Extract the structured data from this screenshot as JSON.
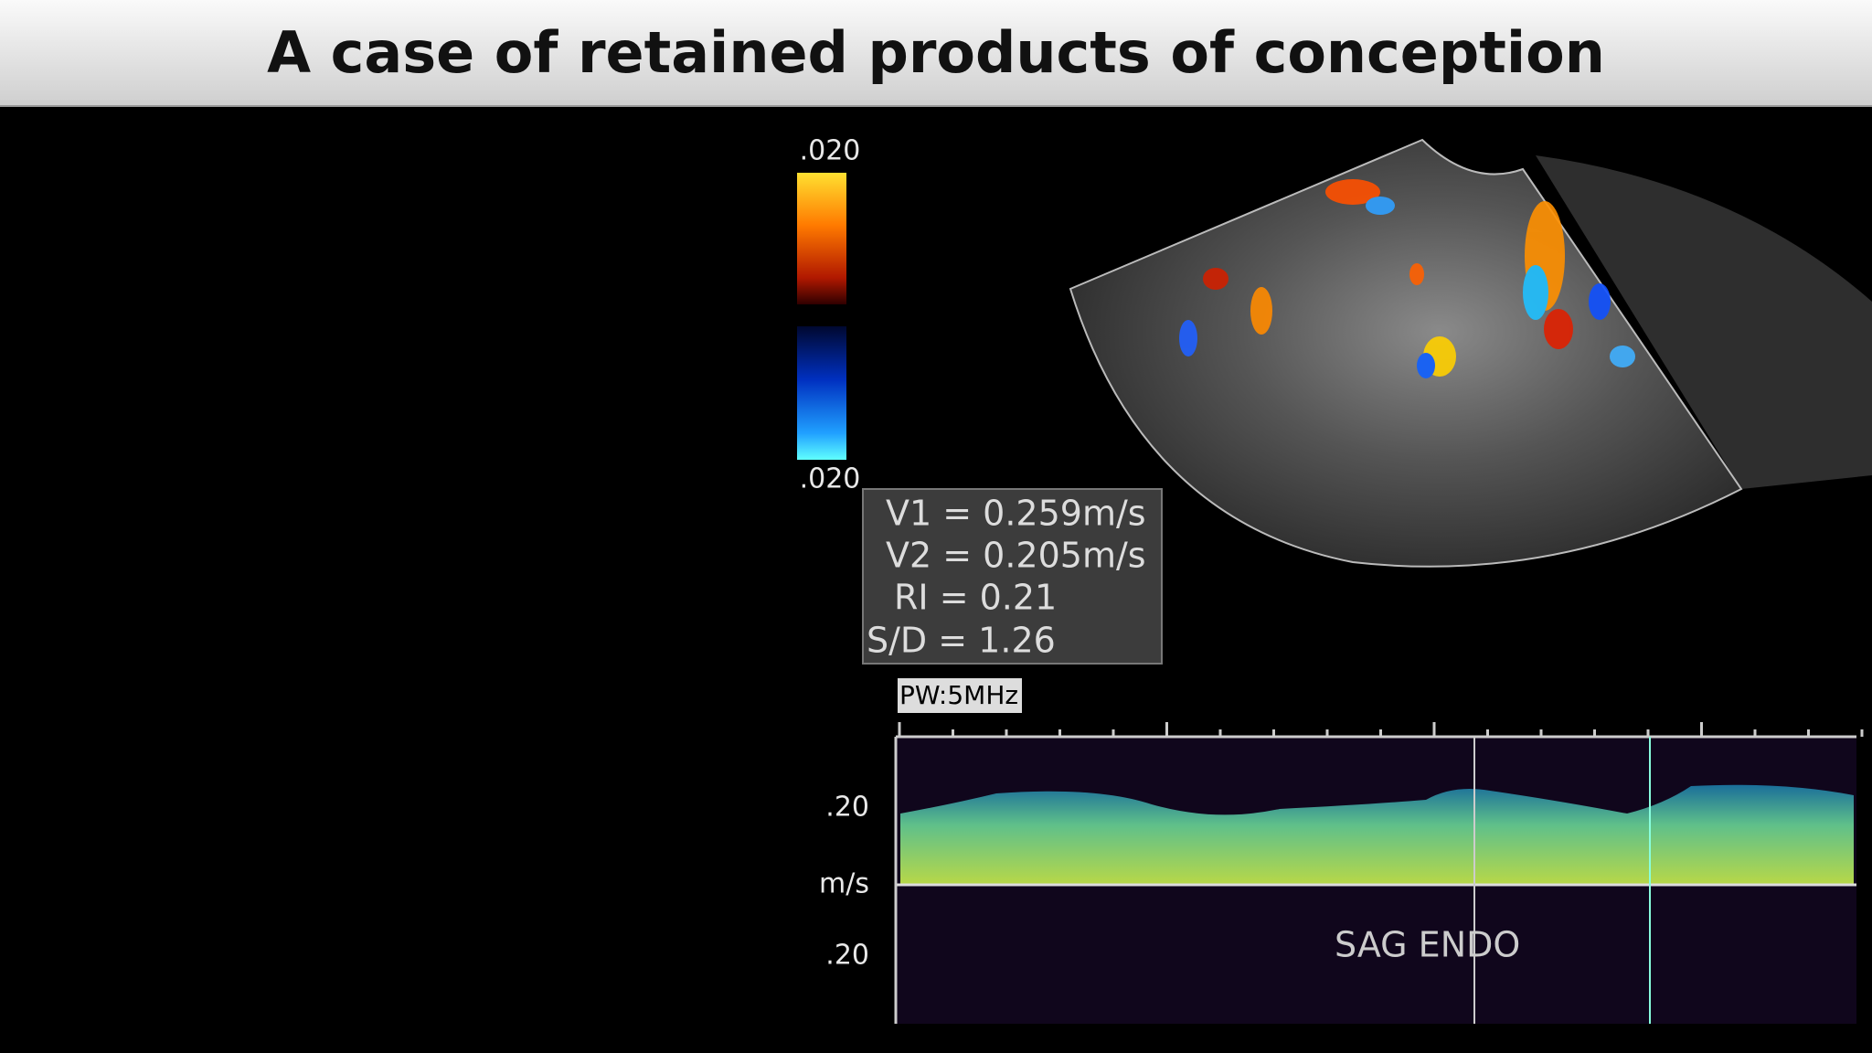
{
  "header": {
    "title": "A case of retained products of conception"
  },
  "image": {
    "color_scale": {
      "top_label": ".020",
      "bottom_label": ".020"
    },
    "measurements": [
      "V1 = 0.259m/s",
      "V2 = 0.205m/s",
      "RI = 0.21",
      "S/D = 1.26"
    ],
    "doppler": {
      "mode_label": "PW:5MHz",
      "axis_labels": [
        ".20",
        "m/s",
        ".20"
      ],
      "annotation": "SAG ENDO"
    }
  }
}
